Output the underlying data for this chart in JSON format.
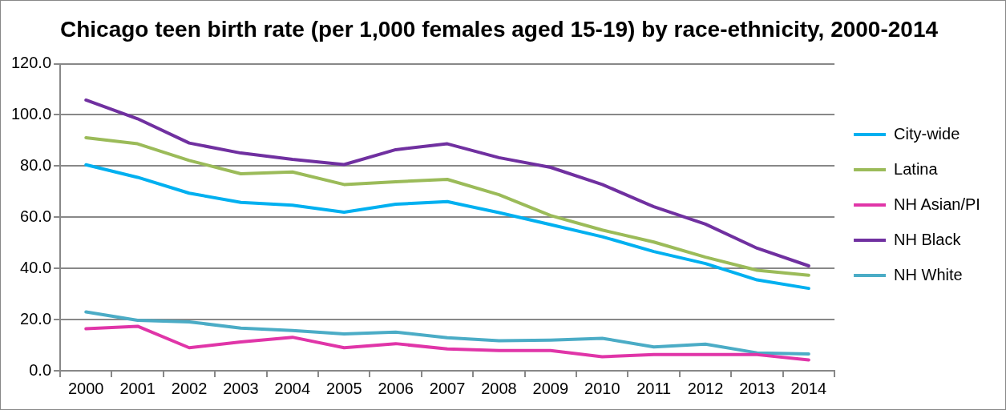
{
  "chart_data": {
    "type": "line",
    "title": "Chicago teen birth rate (per 1,000 females aged 15-19) by race-ethnicity, 2000-2014",
    "categories": [
      "2000",
      "2001",
      "2002",
      "2003",
      "2004",
      "2005",
      "2006",
      "2007",
      "2008",
      "2009",
      "2010",
      "2011",
      "2012",
      "2013",
      "2014"
    ],
    "series": [
      {
        "name": "City-wide",
        "color": "#00b0f0",
        "values": [
          80.5,
          75.6,
          69.4,
          65.8,
          64.7,
          62.0,
          65.1,
          66.1,
          61.8,
          57.1,
          52.4,
          46.6,
          41.9,
          35.5,
          32.2
        ]
      },
      {
        "name": "Latina",
        "color": "#9bbb59",
        "values": [
          91.1,
          88.7,
          82.2,
          77.0,
          77.7,
          72.8,
          73.9,
          74.8,
          68.8,
          60.7,
          55.0,
          50.3,
          44.4,
          39.3,
          37.3
        ]
      },
      {
        "name": "NH Asian/PI",
        "color": "#e035a8",
        "values": [
          16.4,
          17.4,
          9.0,
          11.3,
          13.1,
          9.0,
          10.6,
          8.5,
          7.9,
          7.9,
          5.5,
          6.3,
          6.3,
          6.3,
          4.2
        ]
      },
      {
        "name": "NH Black",
        "color": "#7030a0",
        "values": [
          105.8,
          98.5,
          89.0,
          85.1,
          82.6,
          80.6,
          86.4,
          88.7,
          83.3,
          79.5,
          72.8,
          64.1,
          57.3,
          47.9,
          41.0
        ]
      },
      {
        "name": "NH White",
        "color": "#4bacc6",
        "values": [
          23.0,
          19.7,
          19.1,
          16.7,
          15.7,
          14.4,
          15.1,
          12.9,
          11.7,
          12.0,
          12.7,
          9.3,
          10.4,
          7.0,
          6.6
        ]
      }
    ],
    "ylim": [
      0,
      120
    ],
    "yticks": [
      {
        "value": 0,
        "label": "0.0"
      },
      {
        "value": 20,
        "label": "20.0"
      },
      {
        "value": 40,
        "label": "40.0"
      },
      {
        "value": 60,
        "label": "60.0"
      },
      {
        "value": 80,
        "label": "80.0"
      },
      {
        "value": 100,
        "label": "100.0"
      },
      {
        "value": 120,
        "label": "120.0"
      }
    ],
    "grid": "y",
    "legend": "right",
    "marker": "none",
    "line_style": "solid"
  }
}
